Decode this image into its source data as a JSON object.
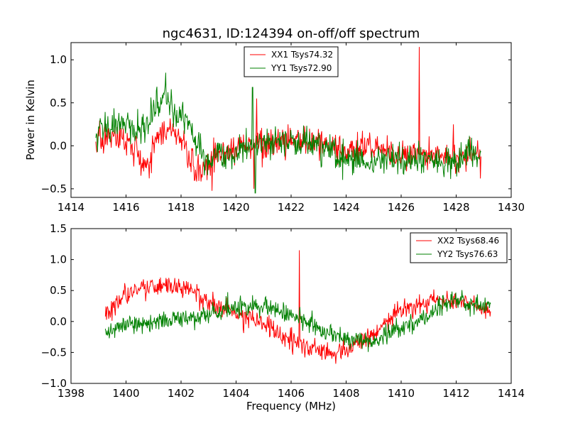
{
  "figure": {
    "title": "ngc4631, ID:124394 on-off/off spectrum",
    "background": "#ffffff",
    "colors": {
      "red": "#ff0000",
      "green": "#008000",
      "axes": "#000000"
    }
  },
  "chart_data": [
    {
      "type": "line",
      "title": "ngc4631, ID:124394 on-off/off spectrum",
      "xlabel": "",
      "ylabel": "Power in Kelvin",
      "xlim": [
        1414,
        1430
      ],
      "ylim": [
        -0.6,
        1.2
      ],
      "xticks": [
        1414,
        1416,
        1418,
        1420,
        1422,
        1424,
        1426,
        1428,
        1430
      ],
      "xtick_labels": [
        "1414",
        "1416",
        "1418",
        "1420",
        "1422",
        "1424",
        "1426",
        "1428",
        "1430"
      ],
      "yticks": [
        -0.5,
        0.0,
        0.5,
        1.0
      ],
      "ytick_labels": [
        "−0.5",
        "0.0",
        "0.5",
        "1.0"
      ],
      "grid": false,
      "legend_position": "top-center",
      "x_range": [
        1414.9,
        1428.9
      ],
      "noise": 0.09,
      "series": [
        {
          "name": "XX1 Tsys74.32",
          "color": "#ff0000",
          "points": [
            [
              1414.9,
              0.05
            ],
            [
              1415.5,
              0.08
            ],
            [
              1416.0,
              0.05
            ],
            [
              1416.5,
              -0.15
            ],
            [
              1416.8,
              -0.3
            ],
            [
              1417.1,
              0.1
            ],
            [
              1417.5,
              0.2
            ],
            [
              1418.0,
              0.1
            ],
            [
              1418.3,
              -0.2
            ],
            [
              1418.6,
              -0.3
            ],
            [
              1419.0,
              -0.2
            ],
            [
              1419.5,
              -0.1
            ],
            [
              1420.0,
              -0.05
            ],
            [
              1420.4,
              0.0
            ],
            [
              1421.0,
              0.05
            ],
            [
              1422.0,
              0.05
            ],
            [
              1423.0,
              0.05
            ],
            [
              1424.0,
              -0.05
            ],
            [
              1425.0,
              -0.05
            ],
            [
              1426.0,
              -0.1
            ],
            [
              1427.0,
              -0.1
            ],
            [
              1428.0,
              -0.15
            ],
            [
              1428.9,
              -0.15
            ]
          ],
          "features": [
            [
              1426.65,
              1.15
            ],
            [
              1427.9,
              0.25
            ],
            [
              1420.75,
              0.55
            ],
            [
              1420.65,
              -0.5
            ]
          ]
        },
        {
          "name": "YY1 Tsys72.90",
          "color": "#008000",
          "points": [
            [
              1414.9,
              0.2
            ],
            [
              1415.5,
              0.22
            ],
            [
              1416.0,
              0.25
            ],
            [
              1416.4,
              0.15
            ],
            [
              1416.8,
              0.3
            ],
            [
              1417.2,
              0.5
            ],
            [
              1417.5,
              0.55
            ],
            [
              1417.8,
              0.3
            ],
            [
              1418.2,
              0.35
            ],
            [
              1418.5,
              0.0
            ],
            [
              1419.0,
              -0.15
            ],
            [
              1419.5,
              -0.1
            ],
            [
              1420.0,
              -0.1
            ],
            [
              1420.4,
              0.0
            ],
            [
              1421.0,
              0.05
            ],
            [
              1422.0,
              0.05
            ],
            [
              1423.0,
              0.0
            ],
            [
              1424.0,
              -0.15
            ],
            [
              1425.0,
              -0.2
            ],
            [
              1426.0,
              -0.2
            ],
            [
              1427.0,
              -0.2
            ],
            [
              1428.0,
              -0.2
            ],
            [
              1428.9,
              -0.1
            ]
          ],
          "features": [
            [
              1417.45,
              0.85
            ],
            [
              1420.6,
              0.68
            ],
            [
              1420.7,
              -0.55
            ]
          ]
        }
      ]
    },
    {
      "type": "line",
      "title": "",
      "xlabel": "Frequency (MHz)",
      "ylabel": "",
      "xlim": [
        1398,
        1414
      ],
      "ylim": [
        -1.0,
        1.5
      ],
      "xticks": [
        1398,
        1400,
        1402,
        1404,
        1406,
        1408,
        1410,
        1412,
        1414
      ],
      "xtick_labels": [
        "1398",
        "1400",
        "1402",
        "1404",
        "1406",
        "1408",
        "1410",
        "1412",
        "1414"
      ],
      "yticks": [
        -1.0,
        -0.5,
        0.0,
        0.5,
        1.0,
        1.5
      ],
      "ytick_labels": [
        "−1.0",
        "−0.5",
        "0.0",
        "0.5",
        "1.0",
        "1.5"
      ],
      "grid": false,
      "legend_position": "top-right",
      "x_range": [
        1399.25,
        1413.25
      ],
      "noise": 0.08,
      "series": [
        {
          "name": "XX2 Tsys68.46",
          "color": "#ff0000",
          "points": [
            [
              1399.25,
              0.2
            ],
            [
              1400.0,
              0.4
            ],
            [
              1400.5,
              0.55
            ],
            [
              1401.0,
              0.55
            ],
            [
              1402.0,
              0.55
            ],
            [
              1402.5,
              0.5
            ],
            [
              1403.0,
              0.3
            ],
            [
              1404.0,
              0.15
            ],
            [
              1405.0,
              -0.05
            ],
            [
              1405.5,
              -0.2
            ],
            [
              1406.0,
              -0.3
            ],
            [
              1406.5,
              -0.4
            ],
            [
              1407.0,
              -0.45
            ],
            [
              1407.5,
              -0.5
            ],
            [
              1408.0,
              -0.45
            ],
            [
              1408.5,
              -0.3
            ],
            [
              1409.0,
              -0.2
            ],
            [
              1409.5,
              0.0
            ],
            [
              1410.0,
              0.2
            ],
            [
              1411.0,
              0.3
            ],
            [
              1411.5,
              0.35
            ],
            [
              1412.0,
              0.3
            ],
            [
              1412.5,
              0.3
            ],
            [
              1413.25,
              0.15
            ]
          ],
          "features": [
            [
              1406.3,
              1.15
            ]
          ]
        },
        {
          "name": "YY2 Tsys76.63",
          "color": "#008000",
          "points": [
            [
              1399.25,
              -0.15
            ],
            [
              1400.0,
              -0.05
            ],
            [
              1401.0,
              0.0
            ],
            [
              1402.0,
              0.05
            ],
            [
              1403.0,
              0.1
            ],
            [
              1404.0,
              0.2
            ],
            [
              1405.0,
              0.25
            ],
            [
              1405.5,
              0.2
            ],
            [
              1406.0,
              0.1
            ],
            [
              1406.5,
              0.0
            ],
            [
              1407.0,
              -0.1
            ],
            [
              1407.5,
              -0.2
            ],
            [
              1408.0,
              -0.3
            ],
            [
              1408.5,
              -0.3
            ],
            [
              1409.0,
              -0.3
            ],
            [
              1409.5,
              -0.2
            ],
            [
              1410.0,
              -0.1
            ],
            [
              1410.5,
              0.0
            ],
            [
              1411.0,
              0.1
            ],
            [
              1411.5,
              0.25
            ],
            [
              1412.0,
              0.35
            ],
            [
              1412.5,
              0.3
            ],
            [
              1413.25,
              0.25
            ]
          ],
          "features": []
        }
      ]
    }
  ]
}
